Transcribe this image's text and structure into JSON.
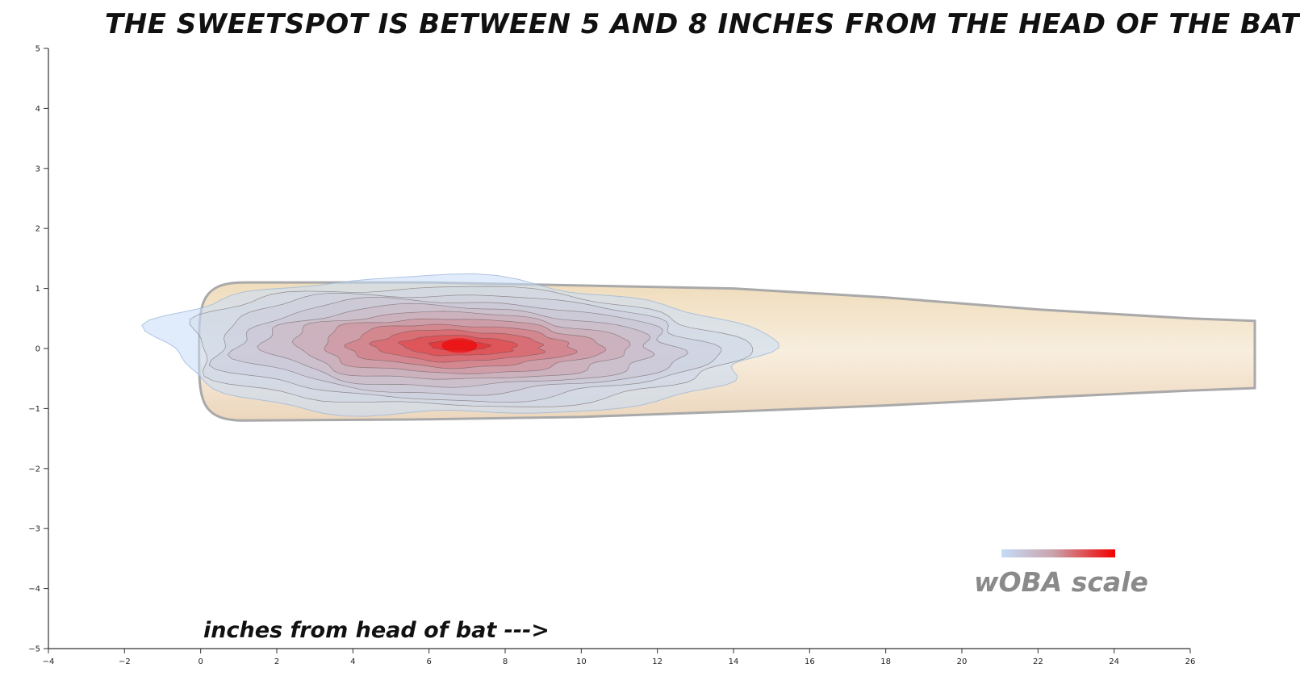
{
  "chart_data": {
    "type": "heatmap",
    "title": "THE SWEETSPOT IS BETWEEN 5 AND 8 INCHES FROM THE HEAD OF THE BAT",
    "xlabel": "inches from head of bat --->",
    "ylabel": "",
    "xlim": [
      -4,
      26
    ],
    "ylim": [
      -5,
      5
    ],
    "x_ticks": [
      "−4",
      "−2",
      "0",
      "2",
      "4",
      "6",
      "8",
      "10",
      "12",
      "14",
      "16",
      "18",
      "20",
      "22",
      "24",
      "26"
    ],
    "y_ticks": [
      "5",
      "4",
      "3",
      "2",
      "1",
      "0",
      "−1",
      "−2",
      "−3",
      "−4",
      "−5"
    ],
    "grid": false,
    "legend": {
      "label": "wOBA scale",
      "placement": "bottom-right",
      "color_low": "#c6dcf7",
      "color_high": "#f20000"
    },
    "bat": {
      "fill": "#f3e2c6",
      "outline": "#a9a9a9",
      "upper_edge": [
        [
          0.5,
          1.1
        ],
        [
          6,
          1.1
        ],
        [
          10,
          1.05
        ],
        [
          14,
          1.0
        ],
        [
          18,
          0.85
        ],
        [
          22,
          0.65
        ],
        [
          26,
          0.5
        ]
      ],
      "lower_edge": [
        [
          0.5,
          -1.2
        ],
        [
          6,
          -1.18
        ],
        [
          10,
          -1.14
        ],
        [
          14,
          -1.05
        ],
        [
          18,
          -0.95
        ],
        [
          22,
          -0.82
        ],
        [
          26,
          -0.7
        ]
      ]
    },
    "density_peak": {
      "x": 6.8,
      "y": 0.05
    },
    "density_center": {
      "x": 6.9,
      "y": 0.02
    },
    "density_extent": {
      "x": [
        -1.2,
        14.7
      ],
      "y": [
        -1.2,
        1.2
      ]
    },
    "contour_levels": 11
  },
  "colors": {
    "low": "#c6dcf7",
    "mid": "#c9a4ad",
    "high": "#f20000",
    "bat": "#f3e2c6",
    "axis": "#333333"
  }
}
